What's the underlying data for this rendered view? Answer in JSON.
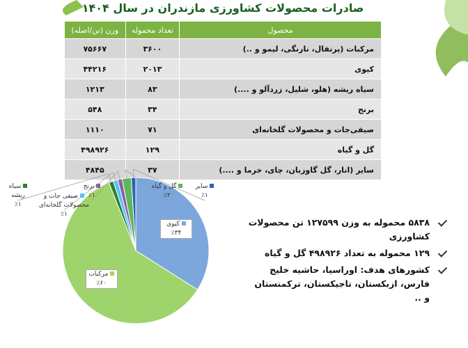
{
  "title": "صادرات محصولات کشاورزی مازندران در سال ۱۴۰۴",
  "table": {
    "header": [
      "محصول",
      "تعداد محموله",
      "وزن (تن/اصله)"
    ],
    "rows": [
      [
        "مرکبات (پرتقال، نارنگی، لیمو و ..)",
        "۳۶۰۰",
        "۷۵۶۶۷"
      ],
      [
        "کیوی",
        "۲۰۱۳",
        "۴۴۲۱۶"
      ],
      [
        "سیاه ریشه (هلو، شلیل، زردآلو و ....)",
        "۸۳",
        "۱۲۱۳"
      ],
      [
        "برنج",
        "۳۴",
        "۵۴۸"
      ],
      [
        "صیفی‌جات و محصولات گلخانه‌ای",
        "۷۱",
        "۱۱۱۰"
      ],
      [
        "گل و گیاه",
        "۱۲۹",
        "۴۹۸۹۲۶"
      ],
      [
        "سایر (انار، گل گاوزبان، چای، خرما و ....)",
        "۳۷",
        "۴۸۴۵"
      ]
    ]
  },
  "chart_data": {
    "type": "pie",
    "categories": [
      "کیوی",
      "مرکبات",
      "سیاه ریشه",
      "صیفی جات و محصولات گلخانه‌ای",
      "برنج",
      "گل و گیاه",
      "سایر"
    ],
    "values": [
      34,
      60,
      1,
      1,
      1,
      2,
      1
    ],
    "value_labels": [
      "٪۳۴",
      "٪۶۰",
      "٪۱",
      "٪۱",
      "٪۱",
      "٪۲",
      "٪۱"
    ],
    "colors": [
      "#7ba7dc",
      "#9fd46c",
      "#2e7d32",
      "#4fc3f7",
      "#8e5ea2",
      "#5cb85c",
      "#2f63ad"
    ]
  },
  "bullets": [
    "۵۸۳۸ محموله به وزن ۱۲۷۵۹۹ تن محصولات کشاورزی",
    "۱۲۹ محموله به تعداد ۴۹۸۹۲۶ گل و گیاه",
    "کشورهای هدف: اوراسیا، حاشیه خلیج فارس، ازبکستان، تاجیکستان، ترکمنستان و .."
  ]
}
